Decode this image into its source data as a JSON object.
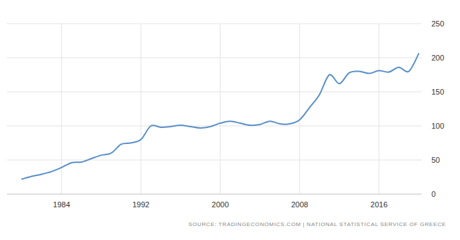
{
  "chart_data": {
    "type": "line",
    "source": "SOURCE: TRADINGECONOMICS.COM | NATIONAL STATISTICAL SERVICE OF GREECE",
    "x": [
      1980,
      1981,
      1982,
      1983,
      1984,
      1985,
      1986,
      1987,
      1988,
      1989,
      1990,
      1991,
      1992,
      1993,
      1994,
      1995,
      1996,
      1997,
      1998,
      1999,
      2000,
      2001,
      2002,
      2003,
      2004,
      2005,
      2006,
      2007,
      2008,
      2009,
      2010,
      2011,
      2012,
      2013,
      2014,
      2015,
      2016,
      2017,
      2018,
      2019,
      2020
    ],
    "values": [
      22,
      26,
      29,
      33,
      39,
      46,
      47,
      52,
      57,
      60,
      73,
      75,
      80,
      100,
      98,
      99,
      101,
      99,
      97,
      99,
      104,
      107,
      104,
      101,
      102,
      107,
      103,
      103,
      109,
      127,
      146,
      175,
      162,
      178,
      180,
      177,
      181,
      179,
      186,
      180,
      206
    ],
    "color": "#5a8fc8",
    "xlim": [
      1978.5,
      2020.3
    ],
    "xticks": [
      1984,
      1992,
      2000,
      2008,
      2016
    ],
    "ylim": [
      0,
      250
    ],
    "yticks": [
      0,
      50,
      100,
      150,
      200,
      250
    ],
    "grid": true
  }
}
